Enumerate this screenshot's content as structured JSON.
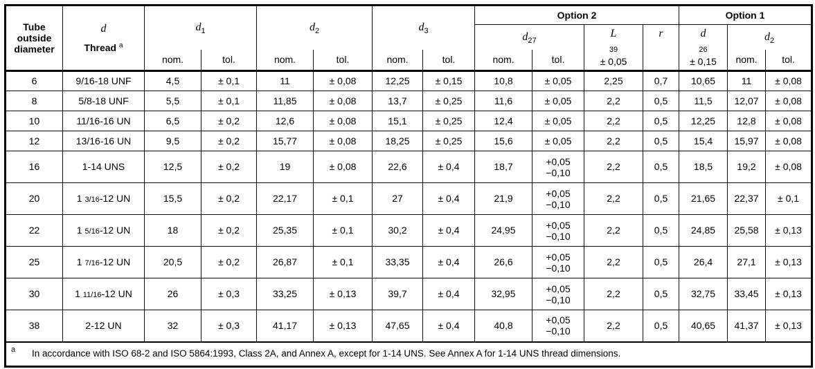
{
  "table": {
    "header": {
      "tube": "Tube outside diameter",
      "thread": {
        "var": "d",
        "label": "Thread",
        "sup": "a"
      },
      "d1": {
        "base": "d",
        "sub": "1"
      },
      "d2": {
        "base": "d",
        "sub": "2"
      },
      "d3": {
        "base": "d",
        "sub": "3"
      },
      "nom": "nom.",
      "tol": "tol.",
      "option2": {
        "label": "Option 2",
        "d27": {
          "base": "d",
          "sub": "27"
        },
        "l39": {
          "base": "L",
          "sub": "39",
          "tol": "± 0,05"
        },
        "r": {
          "base": "r"
        }
      },
      "option1": {
        "label": "Option 1",
        "d26": {
          "base": "d",
          "sub": "26",
          "tol": "± 0,15"
        },
        "d2": {
          "base": "d",
          "sub": "2"
        }
      }
    },
    "rows": [
      {
        "tube": "6",
        "thread": {
          "pre": "9/16-18 UNF",
          "frac": "",
          "post": ""
        },
        "cells": [
          "4,5",
          "± 0,1",
          "11",
          "± 0,08",
          "12,25",
          "± 0,15",
          "10,8",
          "± 0,05",
          "2,25",
          "0,7",
          "10,65",
          "11",
          "± 0,08"
        ]
      },
      {
        "tube": "8",
        "thread": {
          "pre": "5/8-18 UNF",
          "frac": "",
          "post": ""
        },
        "cells": [
          "5,5",
          "± 0,1",
          "11,85",
          "± 0,08",
          "13,7",
          "± 0,25",
          "11,6",
          "± 0,05",
          "2,2",
          "0,5",
          "11,5",
          "12,07",
          "± 0,08"
        ]
      },
      {
        "tube": "10",
        "thread": {
          "pre": "11/16-16 UN",
          "frac": "",
          "post": ""
        },
        "cells": [
          "6,5",
          "± 0,2",
          "12,6",
          "± 0,08",
          "15,1",
          "± 0,25",
          "12,4",
          "± 0,05",
          "2,2",
          "0,5",
          "12,25",
          "12,8",
          "± 0,08"
        ]
      },
      {
        "tube": "12",
        "thread": {
          "pre": "13/16-16 UN",
          "frac": "",
          "post": ""
        },
        "cells": [
          "9,5",
          "± 0,2",
          "15,77",
          "± 0,08",
          "18,25",
          "± 0,25",
          "15,6",
          "± 0,05",
          "2,2",
          "0,5",
          "15,4",
          "15,97",
          "± 0,08"
        ]
      },
      {
        "tube": "16",
        "thread": {
          "pre": "1-14 UNS",
          "frac": "",
          "post": ""
        },
        "cells": [
          "12,5",
          "± 0,2",
          "19",
          "± 0,08",
          "22,6",
          "± 0,4",
          "18,7",
          [
            "+0,05",
            "−0,10"
          ],
          "2,2",
          "0,5",
          "18,5",
          "19,2",
          "± 0,08"
        ]
      },
      {
        "tube": "20",
        "thread": {
          "pre": "1 ",
          "frac": "3/16",
          "post": "-12 UN"
        },
        "cells": [
          "15,5",
          "± 0,2",
          "22,17",
          "± 0,1",
          "27",
          "± 0,4",
          "21,9",
          [
            "+0,05",
            "−0,10"
          ],
          "2,2",
          "0,5",
          "21,65",
          "22,37",
          "± 0,1"
        ]
      },
      {
        "tube": "22",
        "thread": {
          "pre": "1 ",
          "frac": "5/16",
          "post": "-12 UN"
        },
        "cells": [
          "18",
          "± 0,2",
          "25,35",
          "± 0,1",
          "30,2",
          "± 0,4",
          "24,95",
          [
            "+0,05",
            "−0,10"
          ],
          "2,2",
          "0,5",
          "24,85",
          "25,58",
          "± 0,13"
        ]
      },
      {
        "tube": "25",
        "thread": {
          "pre": "1 ",
          "frac": "7/16",
          "post": "-12 UN"
        },
        "cells": [
          "20,5",
          "± 0,2",
          "26,87",
          "± 0,1",
          "33,35",
          "± 0,4",
          "26,6",
          [
            "+0,05",
            "−0,10"
          ],
          "2,2",
          "0,5",
          "26,4",
          "27,1",
          "± 0,13"
        ]
      },
      {
        "tube": "30",
        "thread": {
          "pre": "1 ",
          "frac": "11/16",
          "post": "-12 UN"
        },
        "cells": [
          "26",
          "± 0,3",
          "33,25",
          "± 0,13",
          "39,7",
          "± 0,4",
          "32,95",
          [
            "+0,05",
            "−0,10"
          ],
          "2,2",
          "0,5",
          "32,75",
          "33,45",
          "± 0,13"
        ]
      },
      {
        "tube": "38",
        "thread": {
          "pre": "2-12 UN",
          "frac": "",
          "post": ""
        },
        "cells": [
          "32",
          "± 0,3",
          "41,17",
          "± 0,13",
          "47,65",
          "± 0,4",
          "40,8",
          [
            "+0,05",
            "−0,10"
          ],
          "2,2",
          "0,5",
          "40,65",
          "41,37",
          "± 0,13"
        ]
      }
    ],
    "footnote": {
      "marker": "a",
      "text": "In accordance with ISO 68-2 and ISO 5864:1993, Class 2A, and Annex A, except for 1-14 UNS. See Annex A for 1-14 UNS thread dimensions."
    }
  }
}
